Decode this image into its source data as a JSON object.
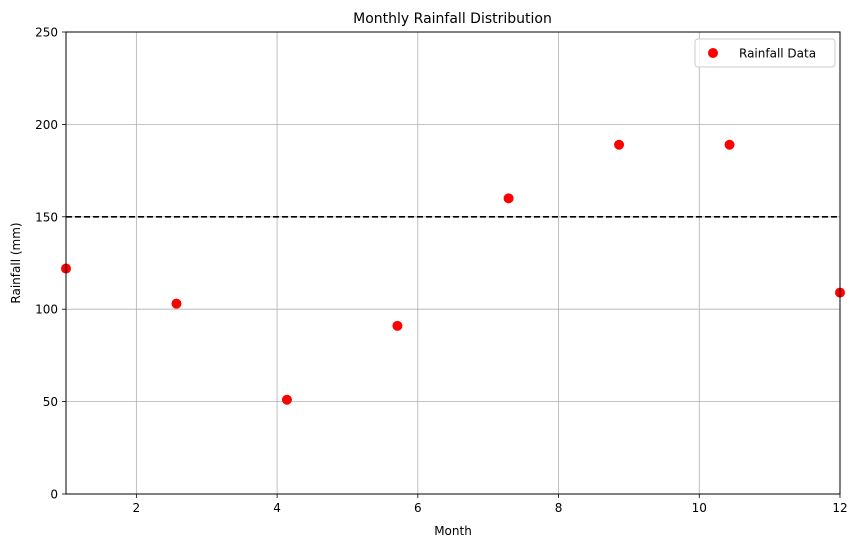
{
  "chart_data": {
    "type": "scatter",
    "title": "Monthly Rainfall Distribution",
    "xlabel": "Month",
    "ylabel": "Rainfall (mm)",
    "xlim": [
      1,
      12
    ],
    "ylim": [
      0,
      250
    ],
    "xticks": [
      "2",
      "4",
      "6",
      "8",
      "10",
      "12"
    ],
    "yticks": [
      "0",
      "50",
      "100",
      "150",
      "200",
      "250"
    ],
    "grid": true,
    "legend_position": "top-right",
    "series": [
      {
        "name": "Rainfall Data",
        "color": "#ff0000",
        "x": [
          1.0,
          2.57,
          4.14,
          5.71,
          7.29,
          8.86,
          10.43,
          12.0
        ],
        "y": [
          122,
          103,
          51,
          91,
          160,
          189,
          189,
          109
        ]
      }
    ],
    "reference_line": {
      "y": 150,
      "style": "dashed",
      "color": "#000000"
    }
  }
}
